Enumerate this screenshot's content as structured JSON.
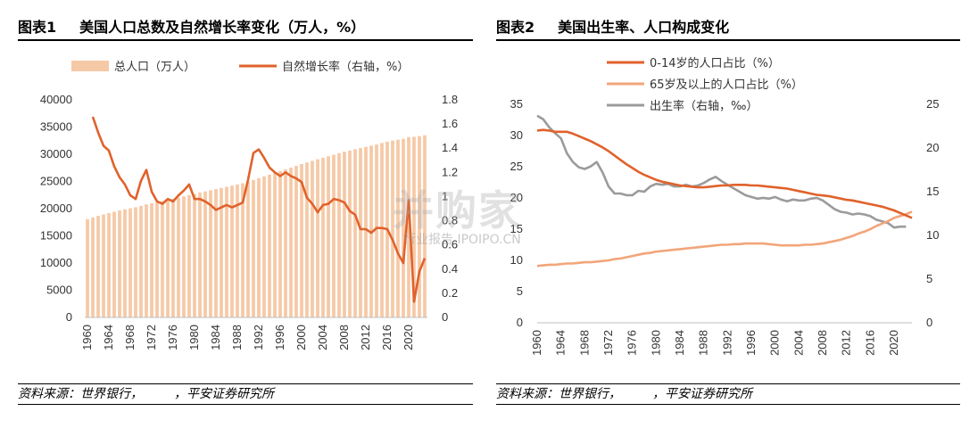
{
  "panel1": {
    "fig": "图表1",
    "title": "美国人口总数及自然增长率变化（万人，%）",
    "source": "资料来源：世界银行，　　　，平安证券研究所"
  },
  "panel2": {
    "fig": "图表2",
    "title": "美国出生率、人口构成变化",
    "source": "资料来源：世界银行，　　　，平安证券研究所"
  },
  "watermark": {
    "main": "并购家",
    "sub": "行业报告 IPOIPO.CN"
  },
  "colors": {
    "bar": "#F6C9A6",
    "red": "#E0622B",
    "peach": "#F2A57A",
    "gray": "#9B9B9B"
  },
  "chart_data": [
    {
      "type": "bar+line",
      "title": "美国人口总数及自然增长率变化（万人，%）",
      "x_ticks": [
        "1960",
        "1964",
        "1968",
        "1972",
        "1976",
        "1980",
        "1984",
        "1988",
        "1992",
        "1996",
        "2000",
        "2004",
        "2008",
        "2012",
        "2016",
        "2020"
      ],
      "y_left": {
        "ticks": [
          "0",
          "5000",
          "10000",
          "15000",
          "20000",
          "25000",
          "30000",
          "35000",
          "40000"
        ],
        "range": [
          0,
          40000
        ]
      },
      "y_right": {
        "ticks": [
          "0",
          "0.2",
          "0.4",
          "0.6",
          "0.8",
          "1",
          "1.2",
          "1.4",
          "1.6",
          "1.8"
        ],
        "range": [
          0,
          1.8
        ]
      },
      "series": [
        {
          "name": "总人口（万人）",
          "kind": "bar",
          "axis": "left",
          "x_start": 1960,
          "values": [
            18070,
            18370,
            18680,
            18920,
            19190,
            19430,
            19660,
            19870,
            20070,
            20260,
            20500,
            20790,
            20990,
            21190,
            21390,
            21600,
            21810,
            22020,
            22260,
            22500,
            22720,
            22940,
            23170,
            23380,
            23590,
            23800,
            24010,
            24230,
            24450,
            24680,
            24950,
            25260,
            25600,
            25940,
            26260,
            26600,
            26910,
            27230,
            27550,
            27860,
            28200,
            28500,
            28790,
            29070,
            29350,
            29630,
            29910,
            30210,
            30480,
            30680,
            30930,
            31130,
            31360,
            31580,
            31790,
            32070,
            32310,
            32510,
            32670,
            32830,
            33150,
            33200,
            33330,
            33490
          ]
        },
        {
          "name": "自然增长率（右轴，%）",
          "kind": "line",
          "axis": "right",
          "x_start": 1961,
          "values": [
            1.66,
            1.53,
            1.42,
            1.38,
            1.25,
            1.16,
            1.1,
            1.01,
            0.98,
            1.13,
            1.22,
            1.04,
            0.96,
            0.94,
            0.98,
            0.96,
            1.01,
            1.05,
            1.1,
            0.98,
            0.98,
            0.96,
            0.93,
            0.89,
            0.91,
            0.93,
            0.91,
            0.93,
            0.95,
            1.14,
            1.36,
            1.39,
            1.32,
            1.24,
            1.2,
            1.17,
            1.2,
            1.17,
            1.15,
            1.12,
            0.99,
            0.94,
            0.87,
            0.93,
            0.94,
            0.98,
            0.97,
            0.95,
            0.88,
            0.85,
            0.73,
            0.73,
            0.7,
            0.74,
            0.74,
            0.73,
            0.64,
            0.53,
            0.45,
            0.97,
            0.13,
            0.38,
            0.49
          ]
        }
      ]
    },
    {
      "type": "line",
      "title": "美国出生率、人口构成变化",
      "x_ticks": [
        "1960",
        "1964",
        "1968",
        "1972",
        "1976",
        "1980",
        "1984",
        "1988",
        "1992",
        "1996",
        "2000",
        "2004",
        "2008",
        "2012",
        "2016",
        "2020"
      ],
      "y_left": {
        "ticks": [
          "0",
          "5",
          "10",
          "15",
          "20",
          "25",
          "30",
          "35"
        ],
        "range": [
          0,
          35
        ]
      },
      "y_right": {
        "ticks": [
          "0",
          "5",
          "10",
          "15",
          "20",
          "25"
        ],
        "range": [
          0,
          25
        ]
      },
      "series": [
        {
          "name": "0-14岁的人口占比（%）",
          "axis": "left",
          "x_start": 1960,
          "values": [
            30.8,
            30.9,
            30.8,
            30.6,
            30.6,
            30.6,
            30.3,
            29.9,
            29.5,
            29.1,
            28.6,
            28.1,
            27.5,
            26.8,
            26.1,
            25.4,
            24.8,
            24.2,
            23.7,
            23.3,
            22.9,
            22.6,
            22.4,
            22.2,
            22.0,
            21.9,
            21.8,
            21.7,
            21.7,
            21.8,
            21.9,
            22.0,
            22.0,
            22.1,
            22.1,
            22.1,
            22.0,
            22.0,
            21.9,
            21.8,
            21.7,
            21.6,
            21.5,
            21.3,
            21.1,
            20.9,
            20.7,
            20.5,
            20.4,
            20.3,
            20.1,
            19.9,
            19.7,
            19.6,
            19.4,
            19.2,
            19.0,
            18.8,
            18.6,
            18.3,
            18.0,
            17.6,
            17.2,
            16.8
          ]
        },
        {
          "name": "65岁及以上的人口占比（%）",
          "axis": "left",
          "x_start": 1960,
          "values": [
            9.1,
            9.2,
            9.3,
            9.3,
            9.4,
            9.5,
            9.5,
            9.6,
            9.7,
            9.7,
            9.8,
            9.9,
            10.0,
            10.2,
            10.3,
            10.5,
            10.7,
            10.9,
            11.1,
            11.2,
            11.4,
            11.5,
            11.6,
            11.7,
            11.8,
            11.9,
            12.0,
            12.1,
            12.2,
            12.3,
            12.4,
            12.5,
            12.5,
            12.6,
            12.6,
            12.7,
            12.7,
            12.7,
            12.7,
            12.6,
            12.5,
            12.4,
            12.4,
            12.4,
            12.4,
            12.5,
            12.5,
            12.6,
            12.7,
            12.9,
            13.1,
            13.3,
            13.6,
            13.9,
            14.3,
            14.6,
            15.0,
            15.5,
            15.9,
            16.3,
            16.8,
            17.1,
            17.4,
            17.8
          ]
        },
        {
          "name": "出生率（右轴，‰）",
          "axis": "right",
          "x_start": 1960,
          "values": [
            23.7,
            23.3,
            22.4,
            21.7,
            21.1,
            19.4,
            18.4,
            17.8,
            17.6,
            17.9,
            18.4,
            17.2,
            15.6,
            14.8,
            14.8,
            14.6,
            14.6,
            15.1,
            15.0,
            15.6,
            15.9,
            15.8,
            15.9,
            15.6,
            15.6,
            15.8,
            15.6,
            15.7,
            16.0,
            16.4,
            16.7,
            16.2,
            15.8,
            15.4,
            15.0,
            14.6,
            14.4,
            14.2,
            14.3,
            14.2,
            14.4,
            14.1,
            13.9,
            14.1,
            14.0,
            14.0,
            14.2,
            14.3,
            14.0,
            13.5,
            13.0,
            12.7,
            12.6,
            12.4,
            12.5,
            12.4,
            12.2,
            11.8,
            11.6,
            11.4,
            10.9,
            11.0,
            11.0
          ]
        }
      ]
    }
  ]
}
